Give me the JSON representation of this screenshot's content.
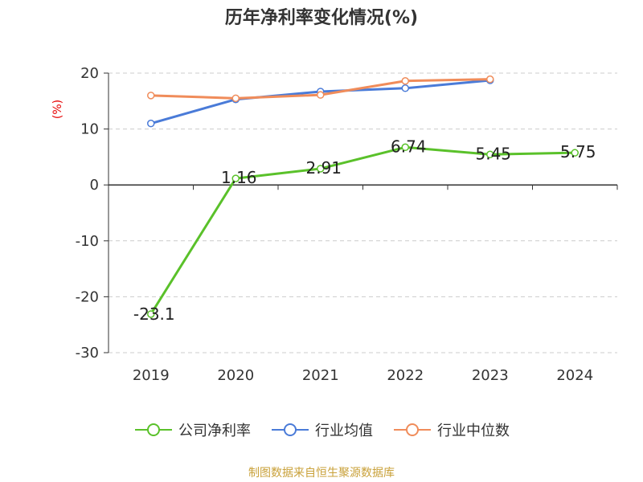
{
  "title": "历年净利率变化情况(%)",
  "footer": "制图数据来自恒生聚源数据库",
  "chart_data": {
    "type": "line",
    "ylabel": "(%)",
    "ylim": [
      -30,
      20
    ],
    "yticks": [
      20,
      10,
      0,
      -10,
      -20,
      -30
    ],
    "categories": [
      "2019",
      "2020",
      "2021",
      "2022",
      "2023",
      "2024"
    ],
    "grid": true,
    "legend_position": "bottom",
    "series": [
      {
        "name": "公司净利率",
        "color": "#5ac12a",
        "values": [
          -23.1,
          1.16,
          2.91,
          6.74,
          5.45,
          5.75
        ],
        "labels": [
          "-23.1",
          "1.16",
          "2.91",
          "6.74",
          "5.45",
          "5.75"
        ]
      },
      {
        "name": "行业均值",
        "color": "#4a7bd8",
        "values": [
          11.0,
          15.3,
          16.7,
          17.3,
          18.7,
          null
        ]
      },
      {
        "name": "行业中位数",
        "color": "#f08c5a",
        "values": [
          16.0,
          15.5,
          16.1,
          18.6,
          18.9,
          null
        ]
      }
    ]
  }
}
